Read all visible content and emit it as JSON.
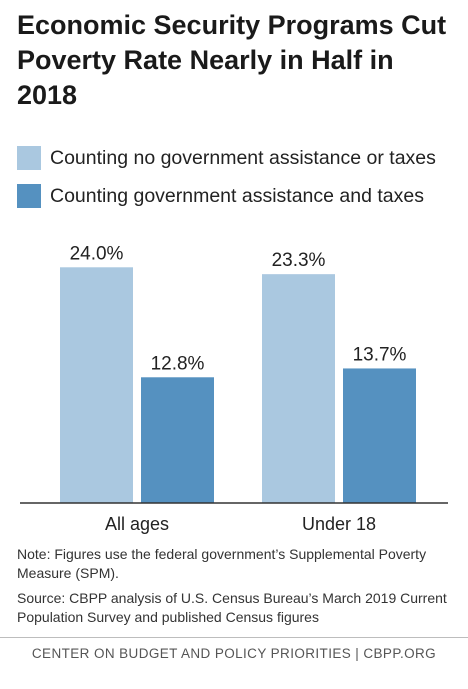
{
  "title": "Economic Security Programs Cut Poverty Rate Nearly in Half in 2018",
  "colors": {
    "light": "#aac8e0",
    "dark": "#5591c0",
    "axis": "#333333"
  },
  "chart_data": {
    "type": "bar",
    "categories": [
      "All ages",
      "Under 18"
    ],
    "series": [
      {
        "name": "Counting no government assistance or taxes",
        "values": [
          24.0,
          23.3
        ],
        "labels": [
          "24.0%",
          "23.3%"
        ]
      },
      {
        "name": "Counting government assistance and taxes",
        "values": [
          12.8,
          13.7
        ],
        "labels": [
          "12.8%",
          "13.7%"
        ]
      }
    ],
    "ylim": [
      0,
      28
    ],
    "legend": "top-left"
  },
  "note": "Note: Figures use the federal government’s Supplemental Poverty Measure (SPM).",
  "source": "Source: CBPP analysis of U.S. Census Bureau’s March 2019 Current Population Survey and published Census figures",
  "footer": "CENTER ON BUDGET AND POLICY PRIORITIES | CBPP.ORG"
}
